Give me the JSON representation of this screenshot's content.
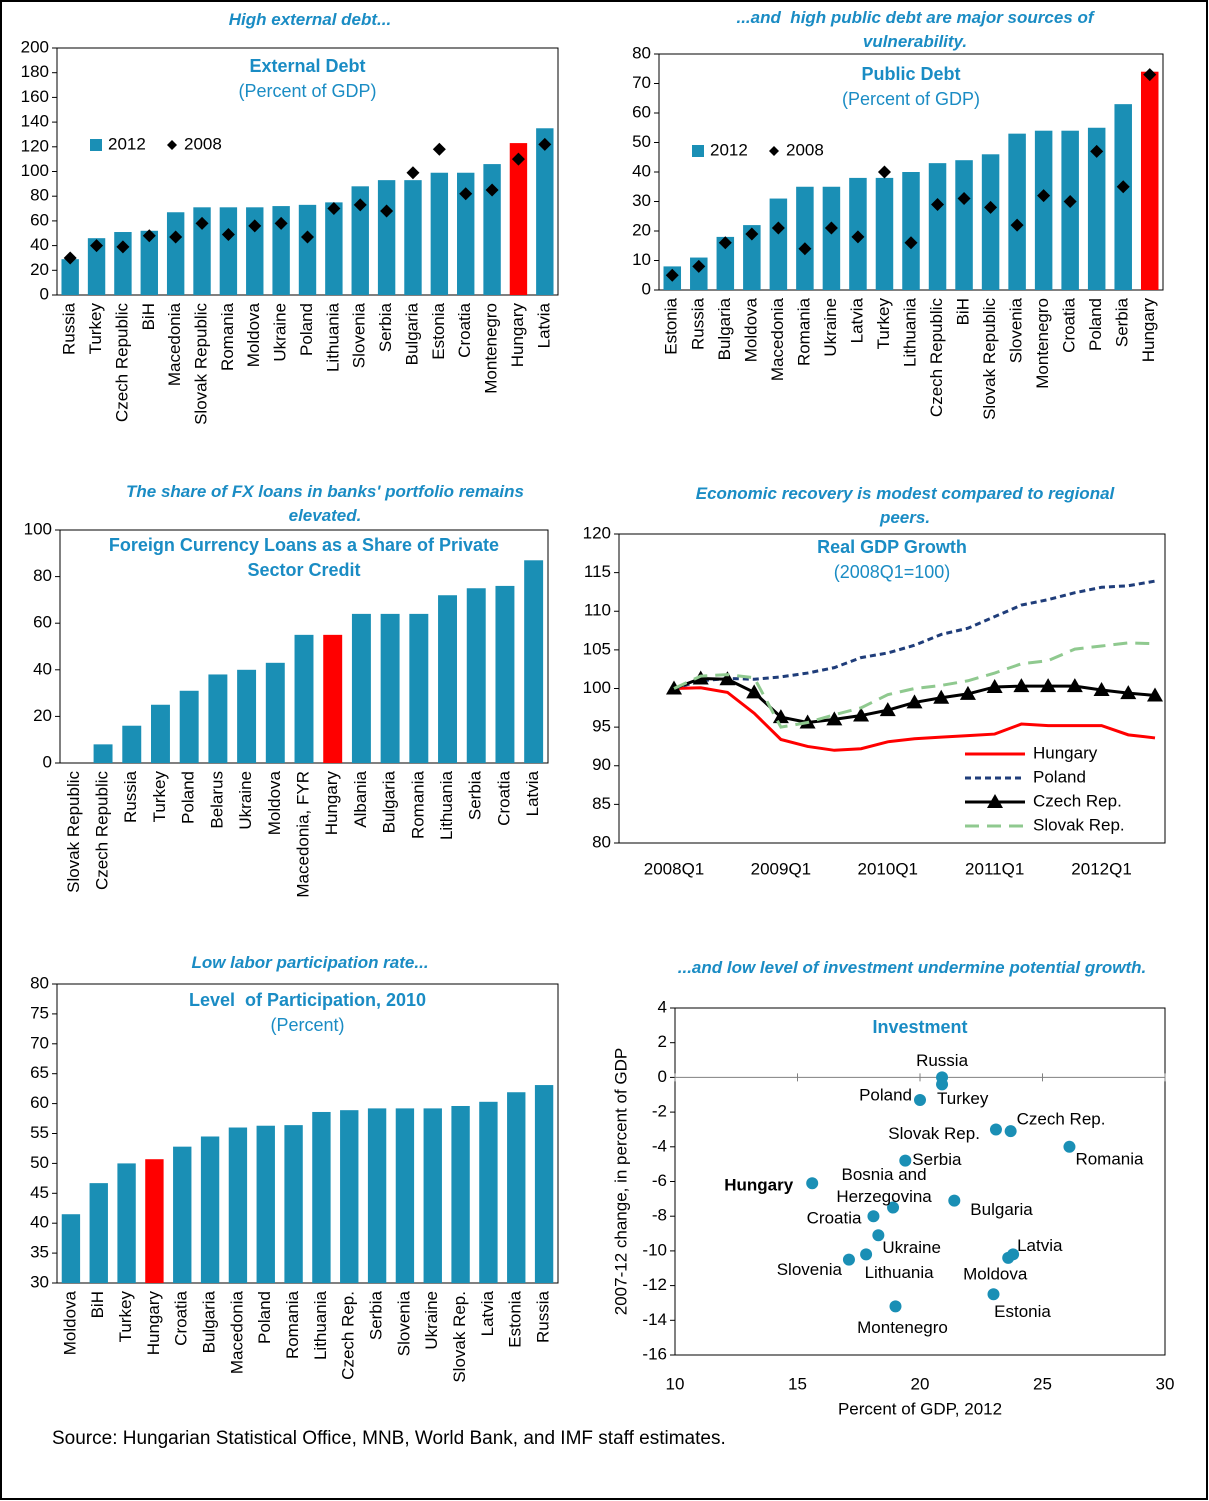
{
  "chart_data": [
    {
      "type": "bar",
      "header": "High external debt...",
      "title": "External Debt",
      "subtitle": "(Percent of GDP)",
      "categories": [
        "Russia",
        "Turkey",
        "Czech Republic",
        "BiH",
        "Macedonia",
        "Slovak Republic",
        "Romania",
        "Moldova",
        "Ukraine",
        "Poland",
        "Lithuania",
        "Slovenia",
        "Serbia",
        "Bulgaria",
        "Estonia",
        "Croatia",
        "Montenegro",
        "Hungary",
        "Latvia"
      ],
      "series": [
        {
          "name": "2012",
          "color": "#1a8fb5",
          "colors": [
            "#1a8fb5",
            "#1a8fb5",
            "#1a8fb5",
            "#1a8fb5",
            "#1a8fb5",
            "#1a8fb5",
            "#1a8fb5",
            "#1a8fb5",
            "#1a8fb5",
            "#1a8fb5",
            "#1a8fb5",
            "#1a8fb5",
            "#1a8fb5",
            "#1a8fb5",
            "#1a8fb5",
            "#1a8fb5",
            "#1a8fb5",
            "#ff0000",
            "#1a8fb5"
          ],
          "values": [
            29,
            46,
            51,
            52,
            67,
            71,
            71,
            71,
            72,
            73,
            75,
            88,
            93,
            93,
            99,
            99,
            106,
            123,
            135
          ]
        },
        {
          "name": "2008",
          "color": "#000000",
          "marker": "diamond",
          "values": [
            30,
            40,
            39,
            48,
            47,
            58,
            49,
            56,
            58,
            47,
            70,
            73,
            68,
            99,
            118,
            82,
            85,
            110,
            122
          ]
        }
      ],
      "ylim": [
        0,
        200
      ],
      "yticks": [
        0,
        20,
        40,
        60,
        80,
        100,
        120,
        140,
        160,
        180,
        200
      ],
      "legend": "upper left"
    },
    {
      "type": "bar",
      "header": "...and  high public debt are major sources of vulnerability.",
      "title": "Public Debt",
      "subtitle": "(Percent of GDP)",
      "categories": [
        "Estonia",
        "Russia",
        "Bulgaria",
        "Moldova",
        "Macedonia",
        "Romania",
        "Ukraine",
        "Latvia",
        "Turkey",
        "Lithuania",
        "Czech Republic",
        "BiH",
        "Slovak Republic",
        "Slovenia",
        "Montenegro",
        "Croatia",
        "Poland",
        "Serbia",
        "Hungary"
      ],
      "series": [
        {
          "name": "2012",
          "color": "#1a8fb5",
          "colors": [
            "#1a8fb5",
            "#1a8fb5",
            "#1a8fb5",
            "#1a8fb5",
            "#1a8fb5",
            "#1a8fb5",
            "#1a8fb5",
            "#1a8fb5",
            "#1a8fb5",
            "#1a8fb5",
            "#1a8fb5",
            "#1a8fb5",
            "#1a8fb5",
            "#1a8fb5",
            "#1a8fb5",
            "#1a8fb5",
            "#1a8fb5",
            "#1a8fb5",
            "#ff0000"
          ],
          "values": [
            8,
            11,
            18,
            22,
            31,
            35,
            35,
            38,
            38,
            40,
            43,
            44,
            46,
            53,
            54,
            54,
            55,
            63,
            74
          ]
        },
        {
          "name": "2008",
          "color": "#000000",
          "marker": "diamond",
          "values": [
            5,
            8,
            16,
            19,
            21,
            14,
            21,
            18,
            40,
            16,
            29,
            31,
            28,
            22,
            32,
            30,
            47,
            35,
            73
          ]
        }
      ],
      "ylim": [
        0,
        80
      ],
      "yticks": [
        0,
        10,
        20,
        30,
        40,
        50,
        60,
        70,
        80
      ],
      "legend": "upper left"
    },
    {
      "type": "bar",
      "header": "The share of FX loans in banks' portfolio remains elevated.",
      "title": "Foreign Currency Loans as a Share of Private Sector Credit",
      "categories": [
        "Slovak Republic",
        "Czech Republic",
        "Russia",
        "Turkey",
        "Poland",
        "Belarus",
        "Ukraine",
        "Moldova",
        "Macedonia, FYR",
        "Hungary",
        "Albania",
        "Bulgaria",
        "Romania",
        "Lithuania",
        "Serbia",
        "Croatia",
        "Latvia"
      ],
      "values": [
        0,
        8,
        16,
        25,
        31,
        38,
        40,
        43,
        55,
        55,
        64,
        64,
        64,
        72,
        75,
        76,
        87
      ],
      "color": "#1a8fb5",
      "colors": [
        "#1a8fb5",
        "#1a8fb5",
        "#1a8fb5",
        "#1a8fb5",
        "#1a8fb5",
        "#1a8fb5",
        "#1a8fb5",
        "#1a8fb5",
        "#1a8fb5",
        "#ff0000",
        "#1a8fb5",
        "#1a8fb5",
        "#1a8fb5",
        "#1a8fb5",
        "#1a8fb5",
        "#1a8fb5",
        "#1a8fb5"
      ],
      "ylim": [
        0,
        100
      ],
      "yticks": [
        0,
        20,
        40,
        60,
        80,
        100
      ]
    },
    {
      "type": "line",
      "header": "Economic recovery is modest compared to regional peers.",
      "title": "Real GDP Growth",
      "subtitle": "(2008Q1=100)",
      "categories": [
        "2008Q1",
        null,
        null,
        null,
        "2009Q1",
        null,
        null,
        null,
        "2010Q1",
        null,
        null,
        null,
        "2011Q1",
        null,
        null,
        null,
        "2012Q1",
        null,
        null
      ],
      "series": [
        {
          "name": "Hungary",
          "color": "#ff0000",
          "linestyle": "solid",
          "values": [
            100.0,
            100.1,
            99.5,
            96.8,
            93.4,
            92.5,
            92.0,
            92.2,
            93.1,
            93.5,
            93.7,
            93.9,
            94.1,
            95.4,
            95.2,
            95.2,
            95.2,
            94.0,
            93.6
          ]
        },
        {
          "name": "Poland",
          "color": "#1f3d7a",
          "linestyle": "dash",
          "values": [
            100.0,
            101.0,
            101.3,
            101.2,
            101.5,
            102.0,
            102.7,
            104.0,
            104.6,
            105.6,
            107.0,
            107.8,
            109.3,
            110.8,
            111.5,
            112.4,
            113.1,
            113.3,
            113.9
          ]
        },
        {
          "name": "Czech Rep.",
          "color": "#000000",
          "linestyle": "solid",
          "marker": "triangle",
          "values": [
            100.0,
            101.3,
            101.2,
            99.5,
            96.3,
            95.6,
            96.0,
            96.5,
            97.2,
            98.2,
            98.8,
            99.3,
            100.2,
            100.3,
            100.3,
            100.3,
            99.8,
            99.4,
            99.1
          ]
        },
        {
          "name": "Slovak Rep.",
          "color": "#8fc98f",
          "linestyle": "longdash",
          "values": [
            100.0,
            101.6,
            101.8,
            101.4,
            95.0,
            95.6,
            96.6,
            97.5,
            99.2,
            100.0,
            100.4,
            101.0,
            102.0,
            103.2,
            103.6,
            105.1,
            105.5,
            105.9,
            105.8
          ]
        }
      ],
      "ylim": [
        80,
        120
      ],
      "yticks": [
        80,
        85,
        90,
        95,
        100,
        105,
        110,
        115,
        120
      ],
      "legend": "lower right"
    },
    {
      "type": "bar",
      "header": "Low labor participation rate...",
      "title": "Level  of Participation, 2010",
      "subtitle": "(Percent)",
      "categories": [
        "Moldova",
        "BiH",
        "Turkey",
        "Hungary",
        "Croatia",
        "Bulgaria",
        "Macedonia",
        "Poland",
        "Romania",
        "Lithuania",
        "Czech Rep.",
        "Serbia",
        "Slovenia",
        "Ukraine",
        "Slovak Rep.",
        "Latvia",
        "Estonia",
        "Russia"
      ],
      "values": [
        41.5,
        46.7,
        50.0,
        50.7,
        52.8,
        54.5,
        56.0,
        56.3,
        56.4,
        58.6,
        58.9,
        59.2,
        59.2,
        59.2,
        59.6,
        60.3,
        61.9,
        63.1
      ],
      "color": "#1a8fb5",
      "colors": [
        "#1a8fb5",
        "#1a8fb5",
        "#1a8fb5",
        "#ff0000",
        "#1a8fb5",
        "#1a8fb5",
        "#1a8fb5",
        "#1a8fb5",
        "#1a8fb5",
        "#1a8fb5",
        "#1a8fb5",
        "#1a8fb5",
        "#1a8fb5",
        "#1a8fb5",
        "#1a8fb5",
        "#1a8fb5",
        "#1a8fb5",
        "#1a8fb5"
      ],
      "ylim": [
        30,
        80
      ],
      "yticks": [
        30,
        35,
        40,
        45,
        50,
        55,
        60,
        65,
        70,
        75,
        80
      ]
    },
    {
      "type": "scatter",
      "header": "...and low level of investment undermine potential growth.",
      "title": "Investment",
      "xlabel": "Percent of GDP, 2012",
      "ylabel": "2007-12 change, in percent of GDP",
      "labels": [
        "Russia",
        "Turkey",
        "Poland",
        "Czech Rep.",
        "Slovak Rep.",
        "Romania",
        "Serbia",
        "Hungary",
        [
          "Bosnia and",
          "Herzegovina"
        ],
        "Bulgaria",
        "Croatia",
        "Ukraine",
        "Lithuania",
        "Slovenia",
        "Latvia",
        "Moldova",
        "Estonia",
        "Montenegro"
      ],
      "x": [
        20.9,
        20.9,
        20.0,
        23.7,
        23.1,
        26.1,
        19.4,
        15.6,
        18.9,
        21.4,
        18.1,
        18.3,
        17.8,
        17.1,
        23.8,
        23.6,
        23.0,
        19.0
      ],
      "y": [
        0.0,
        -0.4,
        -1.3,
        -3.1,
        -3.0,
        -4.0,
        -4.8,
        -6.1,
        -7.5,
        -7.1,
        -8.0,
        -9.1,
        -10.2,
        -10.5,
        -10.2,
        -10.4,
        -12.5,
        -13.2
      ],
      "color": "#1a8fb5",
      "xlim": [
        10,
        30
      ],
      "xticks": [
        10,
        15,
        20,
        25,
        30
      ],
      "ylim": [
        -16,
        4
      ],
      "yticks": [
        -16,
        -14,
        -12,
        -10,
        -8,
        -6,
        -4,
        -2,
        0,
        2,
        4
      ]
    }
  ],
  "source": "Source: Hungarian Statistical Office, MNB, World Bank, and IMF staff estimates."
}
